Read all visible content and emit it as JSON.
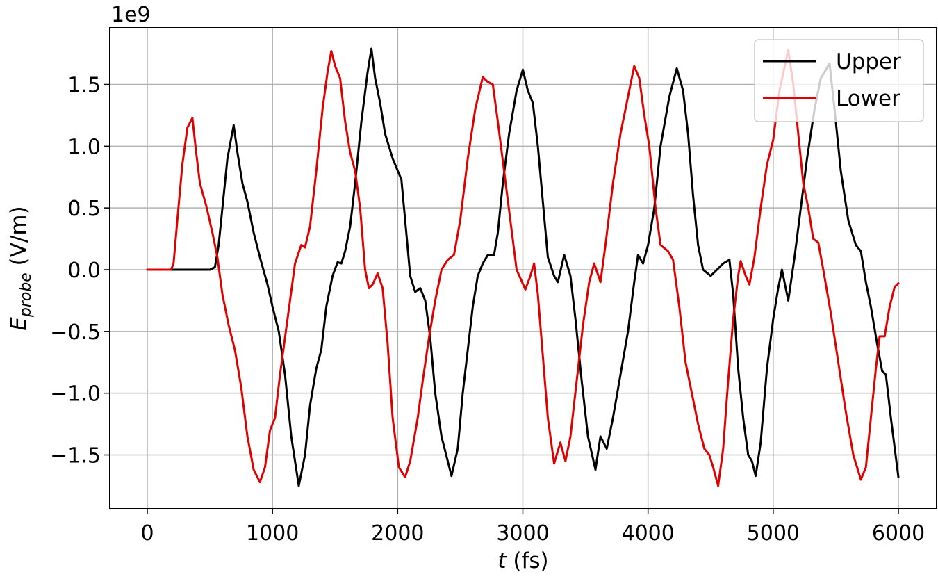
{
  "chart_data": {
    "type": "line",
    "title": "",
    "xlabel": "t (fs)",
    "xlabel_italic_part": "t",
    "xlabel_unit": "(fs)",
    "ylabel": "E_probe (V/m)",
    "ylabel_main": "E",
    "ylabel_sub": "probe",
    "ylabel_unit": "(V/m)",
    "y_scale_note": "1e9",
    "xlim": [
      -300,
      6300
    ],
    "ylim": [
      -1.93,
      1.97
    ],
    "xticks": [
      0,
      1000,
      2000,
      3000,
      4000,
      5000,
      6000
    ],
    "xtick_labels": [
      "0",
      "1000",
      "2000",
      "3000",
      "4000",
      "5000",
      "6000"
    ],
    "yticks": [
      -1.5,
      -1.0,
      -0.5,
      0.0,
      0.5,
      1.0,
      1.5
    ],
    "ytick_labels": [
      "−1.5",
      "−1.0",
      "−0.5",
      "0.0",
      "0.5",
      "1.0",
      "1.5"
    ],
    "grid": true,
    "legend_position": "upper right",
    "series": [
      {
        "name": "Upper",
        "color": "#000000",
        "points": [
          [
            0,
            0
          ],
          [
            500,
            0
          ],
          [
            540,
            0.02
          ],
          [
            570,
            0.2
          ],
          [
            600,
            0.5
          ],
          [
            640,
            0.9
          ],
          [
            690,
            1.17
          ],
          [
            720,
            0.95
          ],
          [
            760,
            0.7
          ],
          [
            800,
            0.55
          ],
          [
            850,
            0.3
          ],
          [
            900,
            0.1
          ],
          [
            960,
            -0.12
          ],
          [
            1000,
            -0.3
          ],
          [
            1050,
            -0.5
          ],
          [
            1100,
            -0.85
          ],
          [
            1150,
            -1.35
          ],
          [
            1210,
            -1.75
          ],
          [
            1260,
            -1.5
          ],
          [
            1300,
            -1.1
          ],
          [
            1350,
            -0.8
          ],
          [
            1390,
            -0.65
          ],
          [
            1430,
            -0.3
          ],
          [
            1480,
            -0.05
          ],
          [
            1520,
            0.06
          ],
          [
            1550,
            0.05
          ],
          [
            1580,
            0.15
          ],
          [
            1620,
            0.35
          ],
          [
            1660,
            0.7
          ],
          [
            1710,
            1.2
          ],
          [
            1760,
            1.6
          ],
          [
            1790,
            1.79
          ],
          [
            1820,
            1.55
          ],
          [
            1860,
            1.35
          ],
          [
            1900,
            1.1
          ],
          [
            1960,
            0.9
          ],
          [
            2030,
            0.73
          ],
          [
            2060,
            0.4
          ],
          [
            2100,
            -0.05
          ],
          [
            2140,
            -0.18
          ],
          [
            2180,
            -0.15
          ],
          [
            2220,
            -0.25
          ],
          [
            2260,
            -0.55
          ],
          [
            2300,
            -1.0
          ],
          [
            2350,
            -1.35
          ],
          [
            2430,
            -1.67
          ],
          [
            2480,
            -1.45
          ],
          [
            2520,
            -1.0
          ],
          [
            2560,
            -0.65
          ],
          [
            2600,
            -0.3
          ],
          [
            2640,
            -0.05
          ],
          [
            2680,
            0.05
          ],
          [
            2720,
            0.12
          ],
          [
            2770,
            0.12
          ],
          [
            2800,
            0.3
          ],
          [
            2840,
            0.7
          ],
          [
            2890,
            1.1
          ],
          [
            2950,
            1.45
          ],
          [
            3000,
            1.62
          ],
          [
            3040,
            1.45
          ],
          [
            3080,
            1.35
          ],
          [
            3120,
            1.0
          ],
          [
            3160,
            0.55
          ],
          [
            3200,
            0.1
          ],
          [
            3250,
            -0.05
          ],
          [
            3280,
            -0.1
          ],
          [
            3330,
            0.12
          ],
          [
            3380,
            -0.05
          ],
          [
            3420,
            -0.4
          ],
          [
            3470,
            -0.9
          ],
          [
            3520,
            -1.35
          ],
          [
            3580,
            -1.62
          ],
          [
            3620,
            -1.35
          ],
          [
            3670,
            -1.45
          ],
          [
            3720,
            -1.2
          ],
          [
            3780,
            -0.85
          ],
          [
            3840,
            -0.5
          ],
          [
            3890,
            -0.1
          ],
          [
            3920,
            0.12
          ],
          [
            3960,
            0.05
          ],
          [
            4000,
            0.2
          ],
          [
            4050,
            0.5
          ],
          [
            4100,
            1.0
          ],
          [
            4170,
            1.4
          ],
          [
            4230,
            1.63
          ],
          [
            4280,
            1.45
          ],
          [
            4320,
            1.1
          ],
          [
            4360,
            0.6
          ],
          [
            4400,
            0.2
          ],
          [
            4440,
            0.0
          ],
          [
            4500,
            -0.05
          ],
          [
            4600,
            0.05
          ],
          [
            4650,
            0.08
          ],
          [
            4680,
            -0.2
          ],
          [
            4720,
            -0.8
          ],
          [
            4760,
            -1.2
          ],
          [
            4800,
            -1.5
          ],
          [
            4830,
            -1.55
          ],
          [
            4860,
            -1.67
          ],
          [
            4900,
            -1.4
          ],
          [
            4950,
            -0.8
          ],
          [
            5000,
            -0.4
          ],
          [
            5040,
            -0.15
          ],
          [
            5070,
            0.0
          ],
          [
            5120,
            -0.25
          ],
          [
            5170,
            0.1
          ],
          [
            5220,
            0.5
          ],
          [
            5270,
            0.9
          ],
          [
            5330,
            1.3
          ],
          [
            5380,
            1.55
          ],
          [
            5450,
            1.67
          ],
          [
            5490,
            1.3
          ],
          [
            5540,
            0.8
          ],
          [
            5600,
            0.4
          ],
          [
            5660,
            0.2
          ],
          [
            5700,
            0.15
          ],
          [
            5740,
            -0.1
          ],
          [
            5780,
            -0.3
          ],
          [
            5830,
            -0.6
          ],
          [
            5870,
            -0.82
          ],
          [
            5900,
            -0.85
          ],
          [
            5940,
            -1.2
          ],
          [
            6000,
            -1.68
          ]
        ]
      },
      {
        "name": "Lower",
        "color": "#e00000",
        "points": [
          [
            0,
            0
          ],
          [
            190,
            0
          ],
          [
            210,
            0.05
          ],
          [
            240,
            0.4
          ],
          [
            280,
            0.85
          ],
          [
            320,
            1.15
          ],
          [
            360,
            1.23
          ],
          [
            390,
            0.95
          ],
          [
            420,
            0.7
          ],
          [
            470,
            0.52
          ],
          [
            520,
            0.3
          ],
          [
            560,
            0.1
          ],
          [
            600,
            -0.2
          ],
          [
            650,
            -0.45
          ],
          [
            700,
            -0.65
          ],
          [
            750,
            -0.95
          ],
          [
            800,
            -1.35
          ],
          [
            850,
            -1.62
          ],
          [
            900,
            -1.72
          ],
          [
            940,
            -1.6
          ],
          [
            980,
            -1.3
          ],
          [
            1020,
            -1.2
          ],
          [
            1060,
            -0.85
          ],
          [
            1100,
            -0.55
          ],
          [
            1140,
            -0.25
          ],
          [
            1180,
            0.05
          ],
          [
            1230,
            0.2
          ],
          [
            1260,
            0.18
          ],
          [
            1300,
            0.35
          ],
          [
            1350,
            0.8
          ],
          [
            1400,
            1.3
          ],
          [
            1440,
            1.6
          ],
          [
            1470,
            1.77
          ],
          [
            1500,
            1.65
          ],
          [
            1540,
            1.55
          ],
          [
            1580,
            1.2
          ],
          [
            1620,
            0.95
          ],
          [
            1660,
            0.8
          ],
          [
            1700,
            0.5
          ],
          [
            1740,
            0.0
          ],
          [
            1770,
            -0.15
          ],
          [
            1800,
            -0.12
          ],
          [
            1840,
            -0.03
          ],
          [
            1880,
            -0.15
          ],
          [
            1920,
            -0.6
          ],
          [
            1960,
            -1.2
          ],
          [
            2010,
            -1.6
          ],
          [
            2060,
            -1.68
          ],
          [
            2100,
            -1.55
          ],
          [
            2160,
            -1.2
          ],
          [
            2200,
            -0.9
          ],
          [
            2250,
            -0.55
          ],
          [
            2300,
            -0.25
          ],
          [
            2350,
            0.0
          ],
          [
            2400,
            0.08
          ],
          [
            2450,
            0.12
          ],
          [
            2500,
            0.4
          ],
          [
            2560,
            0.9
          ],
          [
            2620,
            1.3
          ],
          [
            2680,
            1.56
          ],
          [
            2720,
            1.52
          ],
          [
            2760,
            1.5
          ],
          [
            2800,
            1.2
          ],
          [
            2850,
            0.8
          ],
          [
            2900,
            0.4
          ],
          [
            2950,
            0.0
          ],
          [
            3020,
            -0.16
          ],
          [
            3060,
            -0.05
          ],
          [
            3090,
            0.05
          ],
          [
            3120,
            -0.2
          ],
          [
            3160,
            -0.7
          ],
          [
            3200,
            -1.2
          ],
          [
            3250,
            -1.57
          ],
          [
            3300,
            -1.4
          ],
          [
            3340,
            -1.55
          ],
          [
            3380,
            -1.35
          ],
          [
            3430,
            -0.9
          ],
          [
            3480,
            -0.45
          ],
          [
            3530,
            -0.1
          ],
          [
            3570,
            0.05
          ],
          [
            3620,
            -0.1
          ],
          [
            3660,
            0.2
          ],
          [
            3720,
            0.7
          ],
          [
            3780,
            1.1
          ],
          [
            3840,
            1.4
          ],
          [
            3890,
            1.65
          ],
          [
            3930,
            1.55
          ],
          [
            3970,
            1.25
          ],
          [
            4010,
            1.0
          ],
          [
            4060,
            0.5
          ],
          [
            4100,
            0.2
          ],
          [
            4160,
            0.15
          ],
          [
            4200,
            0.08
          ],
          [
            4250,
            -0.3
          ],
          [
            4300,
            -0.75
          ],
          [
            4350,
            -1.0
          ],
          [
            4400,
            -1.25
          ],
          [
            4450,
            -1.45
          ],
          [
            4490,
            -1.5
          ],
          [
            4520,
            -1.6
          ],
          [
            4560,
            -1.75
          ],
          [
            4600,
            -1.45
          ],
          [
            4640,
            -0.9
          ],
          [
            4680,
            -0.4
          ],
          [
            4720,
            -0.05
          ],
          [
            4740,
            0.07
          ],
          [
            4780,
            -0.05
          ],
          [
            4810,
            -0.12
          ],
          [
            4850,
            0.1
          ],
          [
            4900,
            0.5
          ],
          [
            4950,
            0.85
          ],
          [
            5000,
            1.05
          ],
          [
            5050,
            1.45
          ],
          [
            5120,
            1.78
          ],
          [
            5160,
            1.5
          ],
          [
            5200,
            1.1
          ],
          [
            5240,
            0.7
          ],
          [
            5280,
            0.5
          ],
          [
            5320,
            0.25
          ],
          [
            5360,
            0.22
          ],
          [
            5400,
            0.0
          ],
          [
            5460,
            -0.35
          ],
          [
            5520,
            -0.75
          ],
          [
            5580,
            -1.15
          ],
          [
            5640,
            -1.5
          ],
          [
            5700,
            -1.7
          ],
          [
            5740,
            -1.6
          ],
          [
            5780,
            -1.2
          ],
          [
            5820,
            -0.8
          ],
          [
            5850,
            -0.54
          ],
          [
            5890,
            -0.54
          ],
          [
            5930,
            -0.3
          ],
          [
            5970,
            -0.14
          ],
          [
            6000,
            -0.11
          ]
        ]
      }
    ]
  },
  "legend": {
    "items": [
      {
        "label": "Upper",
        "color": "#000000"
      },
      {
        "label": "Lower",
        "color": "#e00000"
      }
    ]
  },
  "colors": {
    "grid": "#b0b0b0",
    "axis": "#000000",
    "legend_border": "#cccccc"
  }
}
